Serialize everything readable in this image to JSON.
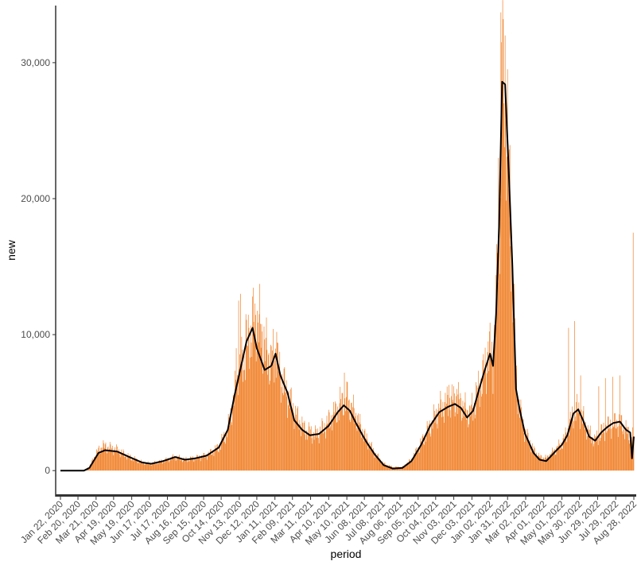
{
  "chart_data": {
    "type": "bar",
    "xlabel": "period",
    "ylabel": "new",
    "x_start": "2020-01-22",
    "x_end": "2022-08-28",
    "y_range": [
      -1800,
      34200
    ],
    "y_ticks": [
      {
        "value": 0,
        "label": "0"
      },
      {
        "value": 10000,
        "label": "10,000"
      },
      {
        "value": 20000,
        "label": "20,000"
      },
      {
        "value": 30000,
        "label": "30,000"
      }
    ],
    "x_ticks": [
      {
        "date": "2020-01-22",
        "label": "Jan 22, 2020"
      },
      {
        "date": "2020-02-20",
        "label": "Feb 20, 2020"
      },
      {
        "date": "2020-03-21",
        "label": "Mar 21, 2020"
      },
      {
        "date": "2020-04-19",
        "label": "Apr 19, 2020"
      },
      {
        "date": "2020-05-19",
        "label": "May 19, 2020"
      },
      {
        "date": "2020-06-17",
        "label": "Jun 17, 2020"
      },
      {
        "date": "2020-07-17",
        "label": "Jul 17, 2020"
      },
      {
        "date": "2020-08-16",
        "label": "Aug 16, 2020"
      },
      {
        "date": "2020-09-15",
        "label": "Sep 15, 2020"
      },
      {
        "date": "2020-10-14",
        "label": "Oct 14, 2020"
      },
      {
        "date": "2020-11-13",
        "label": "Nov 13, 2020"
      },
      {
        "date": "2020-12-12",
        "label": "Dec 12, 2020"
      },
      {
        "date": "2021-01-11",
        "label": "Jan 11, 2021"
      },
      {
        "date": "2021-02-09",
        "label": "Feb 09, 2021"
      },
      {
        "date": "2021-03-11",
        "label": "Mar 11, 2021"
      },
      {
        "date": "2021-04-10",
        "label": "Apr 10, 2021"
      },
      {
        "date": "2021-05-10",
        "label": "May 10, 2021"
      },
      {
        "date": "2021-06-08",
        "label": "Jun 08, 2021"
      },
      {
        "date": "2021-07-08",
        "label": "Jul 08, 2021"
      },
      {
        "date": "2021-08-06",
        "label": "Aug 06, 2021"
      },
      {
        "date": "2021-09-05",
        "label": "Sep 05, 2021"
      },
      {
        "date": "2021-10-04",
        "label": "Oct 04, 2021"
      },
      {
        "date": "2021-11-03",
        "label": "Nov 03, 2021"
      },
      {
        "date": "2021-12-03",
        "label": "Dec 03, 2021"
      },
      {
        "date": "2022-01-02",
        "label": "Jan 02, 2022"
      },
      {
        "date": "2022-01-31",
        "label": "Jan 31, 2022"
      },
      {
        "date": "2022-03-02",
        "label": "Mar 02, 2022"
      },
      {
        "date": "2022-04-01",
        "label": "Apr 01, 2022"
      },
      {
        "date": "2022-05-01",
        "label": "May 01, 2022"
      },
      {
        "date": "2022-05-30",
        "label": "May 30, 2022"
      },
      {
        "date": "2022-06-29",
        "label": "Jun 29, 2022"
      },
      {
        "date": "2022-07-29",
        "label": "Jul 29, 2022"
      },
      {
        "date": "2022-08-28",
        "label": "Aug 28, 2022"
      }
    ],
    "bar_color": "#f07f26",
    "line_color": "#000000",
    "grid": false,
    "legend": "none",
    "bar_series": {
      "name": "",
      "anchors": [
        [
          "2020-01-22",
          0
        ],
        [
          "2020-03-01",
          0
        ],
        [
          "2020-03-10",
          300
        ],
        [
          "2020-03-22",
          1300
        ],
        [
          "2020-04-01",
          1800
        ],
        [
          "2020-04-10",
          1700
        ],
        [
          "2020-04-25",
          1500
        ],
        [
          "2020-05-15",
          1000
        ],
        [
          "2020-06-05",
          600
        ],
        [
          "2020-06-20",
          500
        ],
        [
          "2020-07-10",
          700
        ],
        [
          "2020-07-30",
          1000
        ],
        [
          "2020-08-15",
          800
        ],
        [
          "2020-09-01",
          900
        ],
        [
          "2020-09-20",
          1100
        ],
        [
          "2020-10-10",
          1700
        ],
        [
          "2020-10-25",
          3000
        ],
        [
          "2020-11-05",
          5500
        ],
        [
          "2020-11-15",
          7500
        ],
        [
          "2020-11-25",
          9000
        ],
        [
          "2020-12-05",
          10500
        ],
        [
          "2020-12-15",
          11000
        ],
        [
          "2020-12-25",
          9000
        ],
        [
          "2021-01-05",
          8000
        ],
        [
          "2021-01-12",
          8600
        ],
        [
          "2021-01-20",
          7000
        ],
        [
          "2021-02-01",
          5500
        ],
        [
          "2021-02-15",
          4000
        ],
        [
          "2021-03-01",
          3000
        ],
        [
          "2021-03-20",
          2600
        ],
        [
          "2021-04-05",
          3300
        ],
        [
          "2021-04-25",
          4500
        ],
        [
          "2021-05-05",
          5300
        ],
        [
          "2021-05-15",
          4800
        ],
        [
          "2021-05-25",
          4000
        ],
        [
          "2021-06-10",
          2400
        ],
        [
          "2021-06-25",
          1300
        ],
        [
          "2021-07-10",
          500
        ],
        [
          "2021-07-25",
          250
        ],
        [
          "2021-08-10",
          250
        ],
        [
          "2021-08-25",
          800
        ],
        [
          "2021-09-10",
          2000
        ],
        [
          "2021-09-25",
          3300
        ],
        [
          "2021-10-10",
          4500
        ],
        [
          "2021-10-25",
          5000
        ],
        [
          "2021-11-05",
          5200
        ],
        [
          "2021-11-15",
          5000
        ],
        [
          "2021-11-25",
          4200
        ],
        [
          "2021-12-05",
          4500
        ],
        [
          "2021-12-15",
          6000
        ],
        [
          "2021-12-25",
          7500
        ],
        [
          "2022-01-02",
          8700
        ],
        [
          "2022-01-07",
          8000
        ],
        [
          "2022-01-12",
          12000
        ],
        [
          "2022-01-17",
          18000
        ],
        [
          "2022-01-22",
          29500
        ],
        [
          "2022-01-27",
          29000
        ],
        [
          "2022-02-02",
          22000
        ],
        [
          "2022-02-08",
          15000
        ],
        [
          "2022-02-14",
          7000
        ],
        [
          "2022-02-20",
          4500
        ],
        [
          "2022-03-01",
          2800
        ],
        [
          "2022-03-15",
          1500
        ],
        [
          "2022-03-25",
          1000
        ],
        [
          "2022-04-05",
          900
        ],
        [
          "2022-04-20",
          1500
        ],
        [
          "2022-05-01",
          2000
        ],
        [
          "2022-05-10",
          2800
        ],
        [
          "2022-05-20",
          4200
        ],
        [
          "2022-05-28",
          4500
        ],
        [
          "2022-06-05",
          3800
        ],
        [
          "2022-06-15",
          2700
        ],
        [
          "2022-06-25",
          2200
        ],
        [
          "2022-07-05",
          2800
        ],
        [
          "2022-07-15",
          3200
        ],
        [
          "2022-07-25",
          3400
        ],
        [
          "2022-08-05",
          3500
        ],
        [
          "2022-08-15",
          3000
        ],
        [
          "2022-08-22",
          2500
        ],
        [
          "2022-08-28",
          2500
        ]
      ],
      "spikes": [
        [
          "2020-11-08",
          9000
        ],
        [
          "2020-11-12",
          12500
        ],
        [
          "2020-11-15",
          13000
        ],
        [
          "2020-11-24",
          11500
        ],
        [
          "2020-12-05",
          12800
        ],
        [
          "2020-12-16",
          11500
        ],
        [
          "2020-12-24",
          10600
        ],
        [
          "2021-01-14",
          10200
        ],
        [
          "2021-05-06",
          7200
        ],
        [
          "2021-05-11",
          6500
        ],
        [
          "2021-10-26",
          6300
        ],
        [
          "2021-11-08",
          6000
        ],
        [
          "2021-12-10",
          6500
        ],
        [
          "2021-12-30",
          9500
        ],
        [
          "2022-01-14",
          16000
        ],
        [
          "2022-01-16",
          23000
        ],
        [
          "2022-01-20",
          33700
        ],
        [
          "2022-01-21",
          31500
        ],
        [
          "2022-01-24",
          33200
        ],
        [
          "2022-01-27",
          32000
        ],
        [
          "2022-02-01",
          24000
        ],
        [
          "2022-02-05",
          16500
        ],
        [
          "2022-05-12",
          10500
        ],
        [
          "2022-05-22",
          11000
        ],
        [
          "2022-06-01",
          7000
        ],
        [
          "2022-07-01",
          6200
        ],
        [
          "2022-07-12",
          6800
        ],
        [
          "2022-07-24",
          6900
        ],
        [
          "2022-08-05",
          7000
        ],
        [
          "2022-08-27",
          17500
        ]
      ]
    },
    "line_series": {
      "name": "",
      "points": [
        [
          "2020-01-22",
          0
        ],
        [
          "2020-03-01",
          0
        ],
        [
          "2020-03-10",
          200
        ],
        [
          "2020-03-25",
          1300
        ],
        [
          "2020-04-05",
          1500
        ],
        [
          "2020-04-25",
          1400
        ],
        [
          "2020-05-15",
          1000
        ],
        [
          "2020-06-05",
          600
        ],
        [
          "2020-06-20",
          500
        ],
        [
          "2020-07-10",
          700
        ],
        [
          "2020-07-30",
          1000
        ],
        [
          "2020-08-15",
          800
        ],
        [
          "2020-09-01",
          900
        ],
        [
          "2020-09-20",
          1100
        ],
        [
          "2020-10-10",
          1700
        ],
        [
          "2020-10-25",
          3000
        ],
        [
          "2020-11-05",
          5500
        ],
        [
          "2020-11-15",
          7500
        ],
        [
          "2020-11-25",
          9500
        ],
        [
          "2020-12-05",
          10500
        ],
        [
          "2020-12-12",
          9000
        ],
        [
          "2020-12-25",
          7400
        ],
        [
          "2021-01-05",
          7700
        ],
        [
          "2021-01-12",
          8600
        ],
        [
          "2021-01-20",
          7000
        ],
        [
          "2021-02-01",
          5700
        ],
        [
          "2021-02-12",
          3700
        ],
        [
          "2021-02-25",
          3000
        ],
        [
          "2021-03-10",
          2600
        ],
        [
          "2021-03-25",
          2700
        ],
        [
          "2021-04-10",
          3300
        ],
        [
          "2021-04-25",
          4300
        ],
        [
          "2021-05-05",
          4800
        ],
        [
          "2021-05-15",
          4400
        ],
        [
          "2021-05-25",
          3500
        ],
        [
          "2021-06-10",
          2200
        ],
        [
          "2021-06-25",
          1200
        ],
        [
          "2021-07-10",
          400
        ],
        [
          "2021-07-25",
          150
        ],
        [
          "2021-08-10",
          200
        ],
        [
          "2021-08-25",
          700
        ],
        [
          "2021-09-10",
          1900
        ],
        [
          "2021-09-25",
          3300
        ],
        [
          "2021-10-10",
          4300
        ],
        [
          "2021-10-25",
          4700
        ],
        [
          "2021-11-05",
          4900
        ],
        [
          "2021-11-15",
          4600
        ],
        [
          "2021-11-25",
          3900
        ],
        [
          "2021-12-05",
          4400
        ],
        [
          "2021-12-15",
          6000
        ],
        [
          "2021-12-25",
          7500
        ],
        [
          "2022-01-02",
          8600
        ],
        [
          "2022-01-07",
          7700
        ],
        [
          "2022-01-12",
          11500
        ],
        [
          "2022-01-17",
          18000
        ],
        [
          "2022-01-22",
          28600
        ],
        [
          "2022-01-27",
          28400
        ],
        [
          "2022-02-02",
          22000
        ],
        [
          "2022-02-08",
          15000
        ],
        [
          "2022-02-14",
          6000
        ],
        [
          "2022-02-20",
          4500
        ],
        [
          "2022-03-01",
          2700
        ],
        [
          "2022-03-15",
          1300
        ],
        [
          "2022-03-25",
          800
        ],
        [
          "2022-04-05",
          700
        ],
        [
          "2022-04-20",
          1400
        ],
        [
          "2022-05-01",
          1900
        ],
        [
          "2022-05-10",
          2600
        ],
        [
          "2022-05-20",
          4200
        ],
        [
          "2022-05-28",
          4500
        ],
        [
          "2022-06-05",
          3700
        ],
        [
          "2022-06-15",
          2500
        ],
        [
          "2022-06-25",
          2200
        ],
        [
          "2022-07-05",
          2800
        ],
        [
          "2022-07-15",
          3200
        ],
        [
          "2022-07-25",
          3500
        ],
        [
          "2022-08-05",
          3600
        ],
        [
          "2022-08-15",
          3000
        ],
        [
          "2022-08-22",
          2800
        ],
        [
          "2022-08-25",
          900
        ],
        [
          "2022-08-28",
          2500
        ]
      ]
    }
  }
}
